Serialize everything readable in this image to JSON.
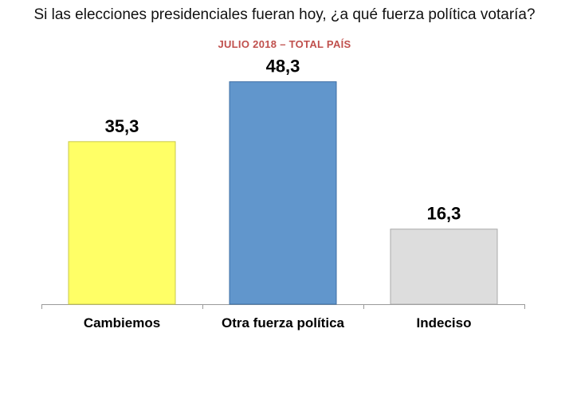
{
  "title": "Si las elecciones presidenciales fueran hoy, ¿a qué fuerza política votaría?",
  "subtitle": "JULIO 2018 – TOTAL PAÍS",
  "subtitle_color": "#c0504d",
  "chart_data": {
    "type": "bar",
    "title": "Si las elecciones presidenciales fueran hoy, ¿a qué fuerza política votaría?",
    "subtitle": "JULIO 2018 – TOTAL PAÍS",
    "categories": [
      "Cambiemos",
      "Otra fuerza política",
      "Indeciso"
    ],
    "values": [
      35.3,
      48.3,
      16.3
    ],
    "value_labels": [
      "35,3",
      "48,3",
      "16,3"
    ],
    "colors": [
      "#ffff66",
      "#6196cc",
      "#dddddd"
    ],
    "border_colors": [
      "#c9c94a",
      "#3c6da3",
      "#a9a9a9"
    ],
    "ylim": [
      0,
      60
    ],
    "grid": false,
    "legend": "none",
    "xlabel": "",
    "ylabel": ""
  }
}
